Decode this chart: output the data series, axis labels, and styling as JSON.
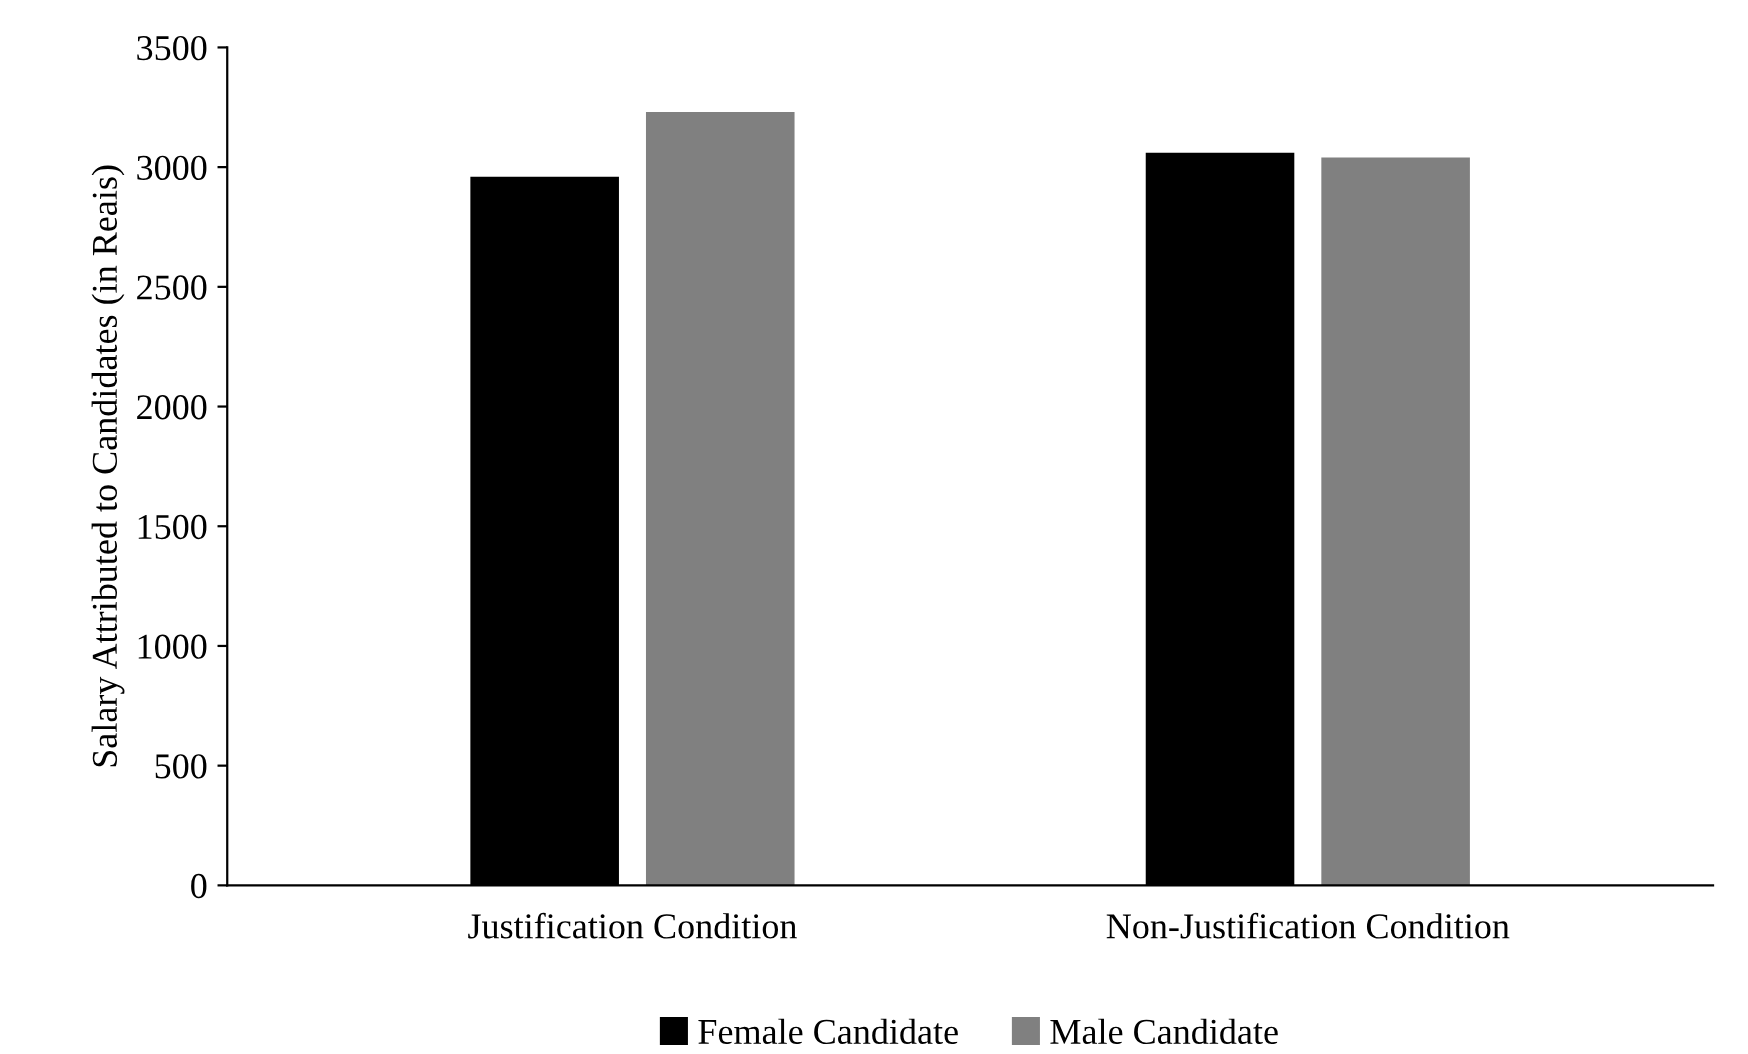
{
  "chart_data": {
    "type": "bar",
    "ylabel": "Salary Attributed to Candidates (in Reais)",
    "categories": [
      "Justification Condition",
      "Non-Justification Condition"
    ],
    "series": [
      {
        "name": "Female Candidate",
        "color": "#000000",
        "values": [
          2960,
          3060
        ]
      },
      {
        "name": "Male Candidate",
        "color": "#808080",
        "values": [
          3230,
          3040
        ]
      }
    ],
    "ylim": [
      0,
      3500
    ],
    "yticks": [
      0,
      500,
      1000,
      1500,
      2000,
      2500,
      3000,
      3500
    ],
    "grid": false,
    "legend": "bottom"
  }
}
